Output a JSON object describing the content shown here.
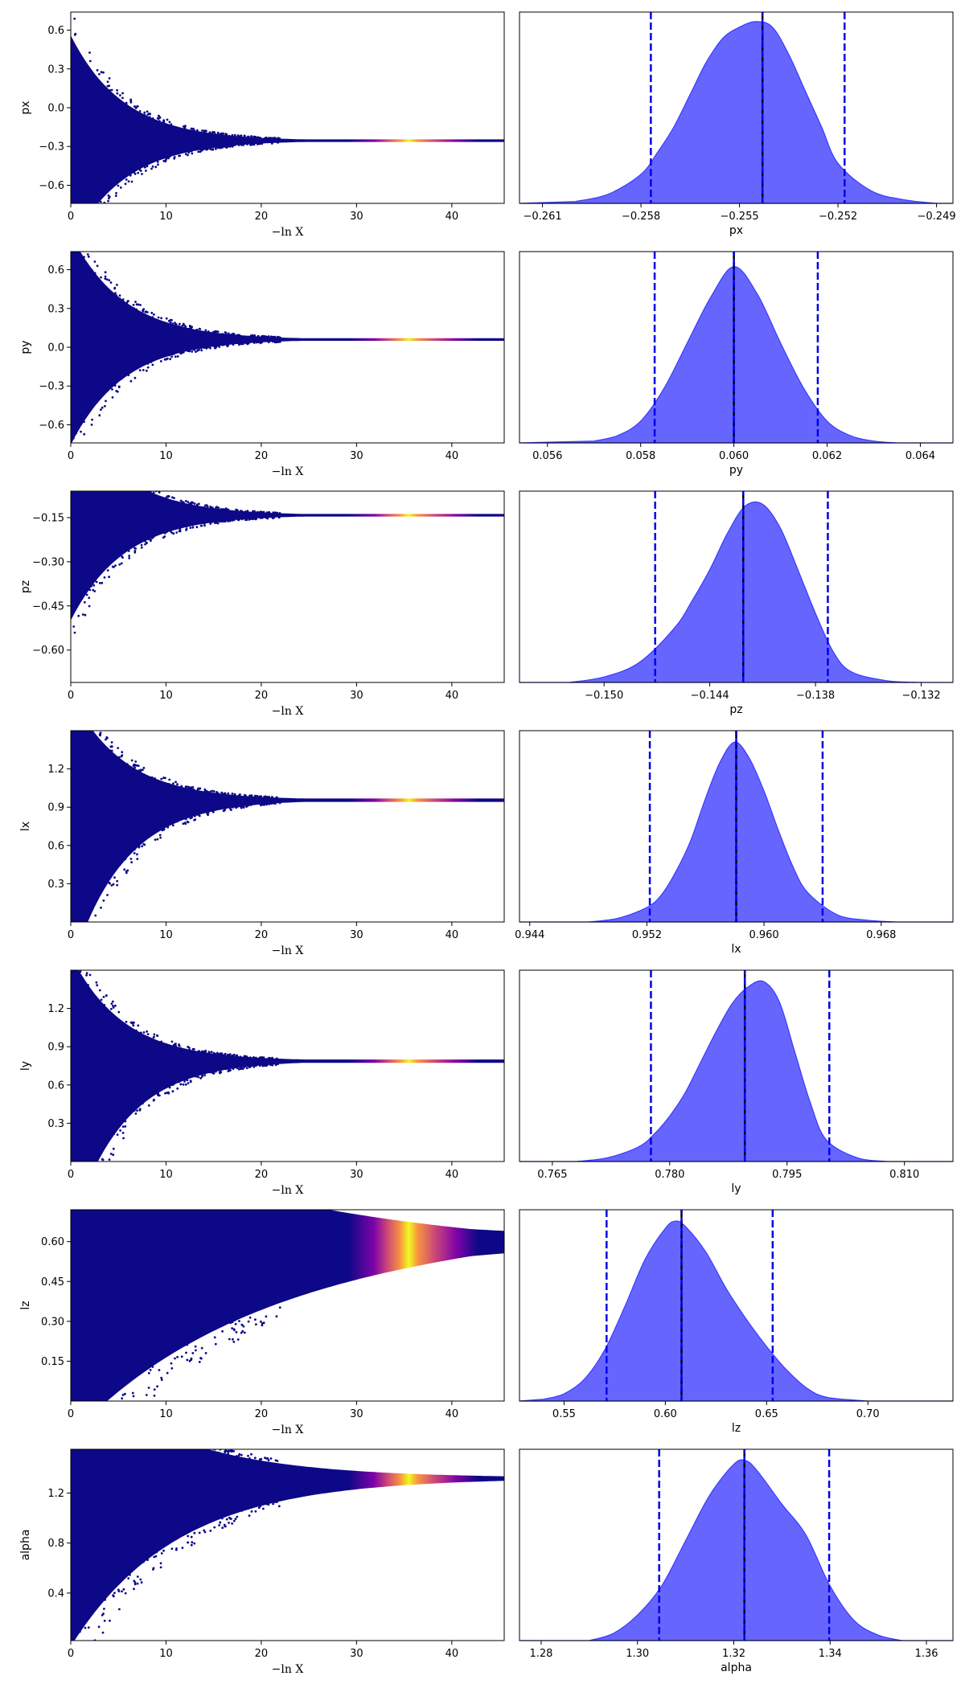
{
  "colors": {
    "trace_low": "#0d0887",
    "trace_mid": "#cc4778",
    "trace_high": "#f0f921",
    "posterior_fill": "#6666ff",
    "posterior_edge": "#3a3aff",
    "quantile_line": "#0000ee"
  },
  "chart_data": [
    {
      "type": "scatter",
      "param": "px",
      "xlabel": "−ln X",
      "ylabel": "px",
      "xlim": [
        0,
        45.5
      ],
      "ylim": [
        -0.74,
        0.74
      ],
      "xticks": [
        0,
        10,
        20,
        30,
        40
      ],
      "xtick_labels": [
        "0",
        "10",
        "20",
        "30",
        "40"
      ],
      "yticks": [
        0.6,
        0.3,
        0.0,
        -0.3,
        -0.6
      ],
      "ytick_labels": [
        "0.6",
        "0.3",
        "0.0",
        "−0.3",
        "−0.6"
      ],
      "converged_value": -0.255
    },
    {
      "type": "area",
      "param": "px",
      "xlabel": "px",
      "xlim": [
        -0.2617,
        -0.2485
      ],
      "xticks": [
        -0.261,
        -0.258,
        -0.255,
        -0.252,
        -0.249
      ],
      "xtick_labels": [
        "−0.261",
        "−0.258",
        "−0.255",
        "−0.252",
        "−0.249"
      ],
      "x": [
        -0.26,
        -0.259,
        -0.258,
        -0.2575,
        -0.257,
        -0.2565,
        -0.256,
        -0.2555,
        -0.255,
        -0.2545,
        -0.254,
        -0.2535,
        -0.253,
        -0.2525,
        -0.252,
        -0.251,
        -0.25,
        -0.249
      ],
      "density": [
        0.01,
        0.05,
        0.16,
        0.28,
        0.42,
        0.6,
        0.78,
        0.91,
        0.97,
        1.0,
        0.97,
        0.82,
        0.62,
        0.42,
        0.22,
        0.07,
        0.02,
        0.0
      ],
      "quantiles": [
        -0.2577,
        -0.2543,
        -0.2518
      ]
    },
    {
      "type": "scatter",
      "param": "py",
      "xlabel": "−ln X",
      "ylabel": "py",
      "xlim": [
        0,
        45.5
      ],
      "ylim": [
        -0.74,
        0.74
      ],
      "xticks": [
        0,
        10,
        20,
        30,
        40
      ],
      "xtick_labels": [
        "0",
        "10",
        "20",
        "30",
        "40"
      ],
      "yticks": [
        0.6,
        0.3,
        0.0,
        -0.3,
        -0.6
      ],
      "ytick_labels": [
        "0.6",
        "0.3",
        "0.0",
        "−0.3",
        "−0.6"
      ],
      "converged_value": 0.06
    },
    {
      "type": "area",
      "param": "py",
      "xlabel": "py",
      "xlim": [
        0.0554,
        0.0647
      ],
      "xticks": [
        0.056,
        0.058,
        0.06,
        0.062,
        0.064
      ],
      "xtick_labels": [
        "0.056",
        "0.058",
        "0.060",
        "0.062",
        "0.064"
      ],
      "x": [
        0.057,
        0.0575,
        0.058,
        0.0585,
        0.059,
        0.0595,
        0.06,
        0.0605,
        0.061,
        0.0615,
        0.062,
        0.0625,
        0.063,
        0.0635
      ],
      "density": [
        0.01,
        0.04,
        0.12,
        0.3,
        0.55,
        0.8,
        0.97,
        0.82,
        0.55,
        0.3,
        0.12,
        0.04,
        0.01,
        0.0
      ],
      "quantiles": [
        0.0583,
        0.06,
        0.0618
      ]
    },
    {
      "type": "scatter",
      "param": "pz",
      "xlabel": "−ln X",
      "ylabel": "pz",
      "xlim": [
        0,
        45.5
      ],
      "ylim": [
        -0.71,
        -0.06
      ],
      "xticks": [
        0,
        10,
        20,
        30,
        40
      ],
      "xtick_labels": [
        "0",
        "10",
        "20",
        "30",
        "40"
      ],
      "yticks": [
        -0.15,
        -0.3,
        -0.45,
        -0.6
      ],
      "ytick_labels": [
        "−0.15",
        "−0.30",
        "−0.45",
        "−0.60"
      ],
      "converged_value": -0.142
    },
    {
      "type": "area",
      "param": "pz",
      "xlabel": "pz",
      "xlim": [
        -0.1548,
        -0.1302
      ],
      "xticks": [
        -0.15,
        -0.144,
        -0.138,
        -0.132
      ],
      "xtick_labels": [
        "−0.150",
        "−0.144",
        "−0.138",
        "−0.132"
      ],
      "x": [
        -0.152,
        -0.15,
        -0.148,
        -0.146,
        -0.145,
        -0.144,
        -0.143,
        -0.142,
        -0.141,
        -0.14,
        -0.139,
        -0.138,
        -0.137,
        -0.136,
        -0.134,
        -0.132
      ],
      "density": [
        0.0,
        0.03,
        0.11,
        0.3,
        0.45,
        0.62,
        0.82,
        0.97,
        0.98,
        0.85,
        0.62,
        0.38,
        0.17,
        0.06,
        0.01,
        0.0
      ],
      "quantiles": [
        -0.1471,
        -0.1421,
        -0.1373
      ]
    },
    {
      "type": "scatter",
      "param": "lx",
      "xlabel": "−ln X",
      "ylabel": "lx",
      "xlim": [
        0,
        45.5
      ],
      "ylim": [
        0.0,
        1.5
      ],
      "xticks": [
        0,
        10,
        20,
        30,
        40
      ],
      "xtick_labels": [
        "0",
        "10",
        "20",
        "30",
        "40"
      ],
      "yticks": [
        1.2,
        0.9,
        0.6,
        0.3
      ],
      "ytick_labels": [
        "1.2",
        "0.9",
        "0.6",
        "0.3"
      ],
      "converged_value": 0.958
    },
    {
      "type": "area",
      "param": "lx",
      "xlabel": "lx",
      "xlim": [
        0.9433,
        0.9729
      ],
      "xticks": [
        0.944,
        0.952,
        0.96,
        0.968
      ],
      "xtick_labels": [
        "0.944",
        "0.952",
        "0.960",
        "0.968"
      ],
      "x": [
        0.948,
        0.95,
        0.952,
        0.953,
        0.954,
        0.955,
        0.956,
        0.957,
        0.958,
        0.959,
        0.96,
        0.961,
        0.962,
        0.963,
        0.965,
        0.967,
        0.969
      ],
      "density": [
        0.0,
        0.02,
        0.08,
        0.15,
        0.28,
        0.45,
        0.68,
        0.88,
        0.99,
        0.9,
        0.72,
        0.5,
        0.3,
        0.16,
        0.04,
        0.01,
        0.0
      ],
      "quantiles": [
        0.9522,
        0.9581,
        0.964
      ]
    },
    {
      "type": "scatter",
      "param": "ly",
      "xlabel": "−ln X",
      "ylabel": "ly",
      "xlim": [
        0,
        45.5
      ],
      "ylim": [
        0.0,
        1.5
      ],
      "xticks": [
        0,
        10,
        20,
        30,
        40
      ],
      "xtick_labels": [
        "0",
        "10",
        "20",
        "30",
        "40"
      ],
      "yticks": [
        1.2,
        0.9,
        0.6,
        0.3
      ],
      "ytick_labels": [
        "1.2",
        "0.9",
        "0.6",
        "0.3"
      ],
      "converged_value": 0.79
    },
    {
      "type": "area",
      "param": "ly",
      "xlabel": "ly",
      "xlim": [
        0.7608,
        0.8162
      ],
      "xticks": [
        0.765,
        0.78,
        0.795,
        0.81
      ],
      "xtick_labels": [
        "0.765",
        "0.780",
        "0.795",
        "0.810"
      ],
      "x": [
        0.768,
        0.772,
        0.776,
        0.778,
        0.78,
        0.782,
        0.784,
        0.786,
        0.788,
        0.79,
        0.792,
        0.794,
        0.796,
        0.798,
        0.8,
        0.804,
        0.808
      ],
      "density": [
        0.0,
        0.02,
        0.08,
        0.15,
        0.25,
        0.38,
        0.55,
        0.72,
        0.87,
        0.96,
        0.99,
        0.88,
        0.6,
        0.32,
        0.12,
        0.02,
        0.0
      ],
      "quantiles": [
        0.7776,
        0.7896,
        0.8004
      ]
    },
    {
      "type": "scatter",
      "param": "lz",
      "xlabel": "−ln X",
      "ylabel": "lz",
      "xlim": [
        0,
        45.5
      ],
      "ylim": [
        0.0,
        0.72
      ],
      "xticks": [
        0,
        10,
        20,
        30,
        40
      ],
      "xtick_labels": [
        "0",
        "10",
        "20",
        "30",
        "40"
      ],
      "yticks": [
        0.6,
        0.45,
        0.3,
        0.15
      ],
      "ytick_labels": [
        "0.60",
        "0.45",
        "0.30",
        "0.15"
      ],
      "converged_value": 0.608
    },
    {
      "type": "area",
      "param": "lz",
      "xlabel": "lz",
      "xlim": [
        0.528,
        0.742
      ],
      "xticks": [
        0.55,
        0.6,
        0.65,
        0.7
      ],
      "xtick_labels": [
        "0.55",
        "0.60",
        "0.65",
        "0.70"
      ],
      "x": [
        0.54,
        0.55,
        0.56,
        0.57,
        0.58,
        0.59,
        0.6,
        0.605,
        0.61,
        0.62,
        0.63,
        0.64,
        0.65,
        0.66,
        0.67,
        0.68,
        0.7
      ],
      "density": [
        0.01,
        0.04,
        0.12,
        0.28,
        0.52,
        0.78,
        0.95,
        0.99,
        0.96,
        0.82,
        0.62,
        0.45,
        0.3,
        0.17,
        0.07,
        0.02,
        0.0
      ],
      "quantiles": [
        0.571,
        0.608,
        0.653
      ]
    },
    {
      "type": "scatter",
      "param": "alpha",
      "xlabel": "−ln X",
      "ylabel": "alpha",
      "xlim": [
        0,
        45.5
      ],
      "ylim": [
        0.02,
        1.55
      ],
      "xticks": [
        0,
        10,
        20,
        30,
        40
      ],
      "xtick_labels": [
        "0",
        "10",
        "20",
        "30",
        "40"
      ],
      "yticks": [
        1.2,
        0.8,
        0.4
      ],
      "ytick_labels": [
        "1.2",
        "0.8",
        "0.4"
      ],
      "converged_value": 1.32
    },
    {
      "type": "area",
      "param": "alpha",
      "xlabel": "alpha",
      "xlim": [
        1.2755,
        1.3655
      ],
      "xticks": [
        1.28,
        1.3,
        1.32,
        1.34,
        1.36
      ],
      "xtick_labels": [
        "1.28",
        "1.30",
        "1.32",
        "1.34",
        "1.36"
      ],
      "x": [
        1.29,
        1.295,
        1.3,
        1.305,
        1.31,
        1.315,
        1.32,
        1.3225,
        1.325,
        1.33,
        1.335,
        1.34,
        1.345,
        1.35,
        1.355
      ],
      "density": [
        0.0,
        0.04,
        0.14,
        0.3,
        0.55,
        0.8,
        0.97,
        0.99,
        0.93,
        0.75,
        0.58,
        0.3,
        0.11,
        0.03,
        0.0
      ],
      "quantiles": [
        1.3045,
        1.3222,
        1.3398
      ]
    }
  ]
}
